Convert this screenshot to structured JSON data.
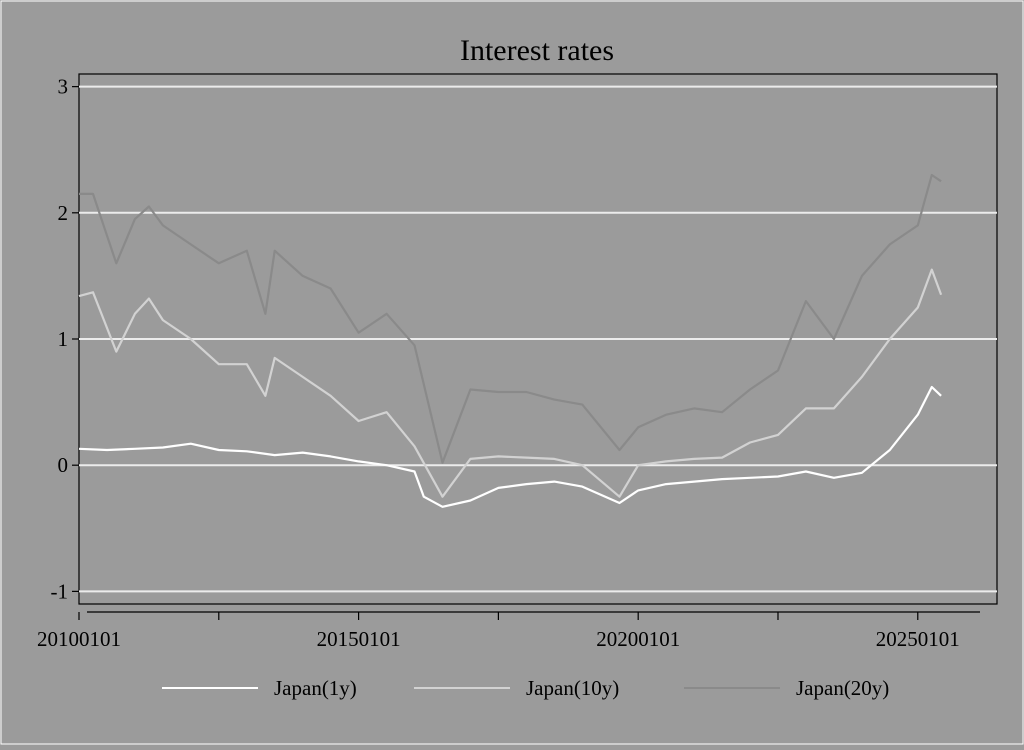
{
  "chart_data": {
    "type": "line",
    "title": "Interest rates",
    "xlabel": "",
    "ylabel": "",
    "xlim": [
      20100101,
      20260601
    ],
    "ylim": [
      -1.1,
      3.1
    ],
    "y_ticks": [
      -1,
      0,
      1,
      2,
      3
    ],
    "y_tick_labels": [
      "-1",
      "0",
      "1",
      "2",
      "3"
    ],
    "x_ticks": [
      20100101,
      20120701,
      20150101,
      20170701,
      20200101,
      20220701,
      20250101
    ],
    "x_tick_labels": [
      "20100101",
      "",
      "20150101",
      "",
      "20200101",
      "",
      "20250101"
    ],
    "grid": "horizontal",
    "legend": "bottom",
    "colors": {
      "background": "#9b9b9b",
      "plot_bg": "#9b9b9b",
      "grid": "#ececec",
      "axis": "#000000"
    },
    "series": [
      {
        "name": "Japan(1y)",
        "color": "#ffffff",
        "points": [
          [
            "20100101",
            0.13
          ],
          [
            "20100701",
            0.12
          ],
          [
            "20110101",
            0.13
          ],
          [
            "20110701",
            0.14
          ],
          [
            "20120101",
            0.17
          ],
          [
            "20120701",
            0.12
          ],
          [
            "20130101",
            0.11
          ],
          [
            "20130701",
            0.08
          ],
          [
            "20140101",
            0.1
          ],
          [
            "20140701",
            0.07
          ],
          [
            "20150101",
            0.03
          ],
          [
            "20150701",
            0.0
          ],
          [
            "20160101",
            -0.05
          ],
          [
            "20160301",
            -0.25
          ],
          [
            "20160701",
            -0.33
          ],
          [
            "20170101",
            -0.28
          ],
          [
            "20170701",
            -0.18
          ],
          [
            "20180101",
            -0.15
          ],
          [
            "20180701",
            -0.13
          ],
          [
            "20190101",
            -0.17
          ],
          [
            "20190901",
            -0.3
          ],
          [
            "20200101",
            -0.2
          ],
          [
            "20200701",
            -0.15
          ],
          [
            "20210101",
            -0.13
          ],
          [
            "20210701",
            -0.11
          ],
          [
            "20220101",
            -0.1
          ],
          [
            "20220701",
            -0.09
          ],
          [
            "20230101",
            -0.05
          ],
          [
            "20230701",
            -0.1
          ],
          [
            "20240101",
            -0.06
          ],
          [
            "20240701",
            0.12
          ],
          [
            "20250101",
            0.4
          ],
          [
            "20250401",
            0.62
          ],
          [
            "20250601",
            0.55
          ]
        ]
      },
      {
        "name": "Japan(10y)",
        "color": "#d2d2d2",
        "points": [
          [
            "20100101",
            1.34
          ],
          [
            "20100401",
            1.37
          ],
          [
            "20100901",
            0.9
          ],
          [
            "20110101",
            1.2
          ],
          [
            "20110401",
            1.32
          ],
          [
            "20110701",
            1.15
          ],
          [
            "20120101",
            1.0
          ],
          [
            "20120701",
            0.8
          ],
          [
            "20130101",
            0.8
          ],
          [
            "20130501",
            0.55
          ],
          [
            "20130701",
            0.85
          ],
          [
            "20140101",
            0.7
          ],
          [
            "20140701",
            0.55
          ],
          [
            "20150101",
            0.35
          ],
          [
            "20150701",
            0.42
          ],
          [
            "20160101",
            0.15
          ],
          [
            "20160701",
            -0.25
          ],
          [
            "20170101",
            0.05
          ],
          [
            "20170701",
            0.07
          ],
          [
            "20180101",
            0.06
          ],
          [
            "20180701",
            0.05
          ],
          [
            "20190101",
            0.0
          ],
          [
            "20190901",
            -0.25
          ],
          [
            "20200101",
            0.0
          ],
          [
            "20200701",
            0.03
          ],
          [
            "20210101",
            0.05
          ],
          [
            "20210701",
            0.06
          ],
          [
            "20220101",
            0.18
          ],
          [
            "20220701",
            0.24
          ],
          [
            "20230101",
            0.45
          ],
          [
            "20230701",
            0.45
          ],
          [
            "20240101",
            0.7
          ],
          [
            "20240701",
            1.0
          ],
          [
            "20250101",
            1.25
          ],
          [
            "20250401",
            1.55
          ],
          [
            "20250601",
            1.35
          ]
        ]
      },
      {
        "name": "Japan(20y)",
        "color": "#8a8a8a",
        "points": [
          [
            "20100101",
            2.15
          ],
          [
            "20100401",
            2.15
          ],
          [
            "20100901",
            1.6
          ],
          [
            "20110101",
            1.95
          ],
          [
            "20110401",
            2.05
          ],
          [
            "20110701",
            1.9
          ],
          [
            "20120101",
            1.75
          ],
          [
            "20120701",
            1.6
          ],
          [
            "20130101",
            1.7
          ],
          [
            "20130501",
            1.2
          ],
          [
            "20130701",
            1.7
          ],
          [
            "20140101",
            1.5
          ],
          [
            "20140701",
            1.4
          ],
          [
            "20150101",
            1.05
          ],
          [
            "20150701",
            1.2
          ],
          [
            "20160101",
            0.95
          ],
          [
            "20160701",
            0.02
          ],
          [
            "20170101",
            0.6
          ],
          [
            "20170701",
            0.58
          ],
          [
            "20180101",
            0.58
          ],
          [
            "20180701",
            0.52
          ],
          [
            "20190101",
            0.48
          ],
          [
            "20190901",
            0.12
          ],
          [
            "20200101",
            0.3
          ],
          [
            "20200701",
            0.4
          ],
          [
            "20210101",
            0.45
          ],
          [
            "20210701",
            0.42
          ],
          [
            "20220101",
            0.6
          ],
          [
            "20220701",
            0.75
          ],
          [
            "20230101",
            1.3
          ],
          [
            "20230701",
            1.0
          ],
          [
            "20240101",
            1.5
          ],
          [
            "20240701",
            1.75
          ],
          [
            "20250101",
            1.9
          ],
          [
            "20250401",
            2.3
          ],
          [
            "20250601",
            2.25
          ]
        ]
      }
    ]
  }
}
